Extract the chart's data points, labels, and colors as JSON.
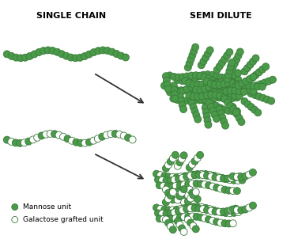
{
  "title_left": "SINGLE CHAIN",
  "title_right": "SEMI DILUTE",
  "mannose_color": "#4a9a4a",
  "galactose_color": "#ffffff",
  "edge_color": "#3a7a3a",
  "background_color": "#ffffff",
  "legend_mannose": "Mannose unit",
  "legend_galactose": "Galactose grafted unit",
  "fig_width": 3.77,
  "fig_height": 3.07
}
